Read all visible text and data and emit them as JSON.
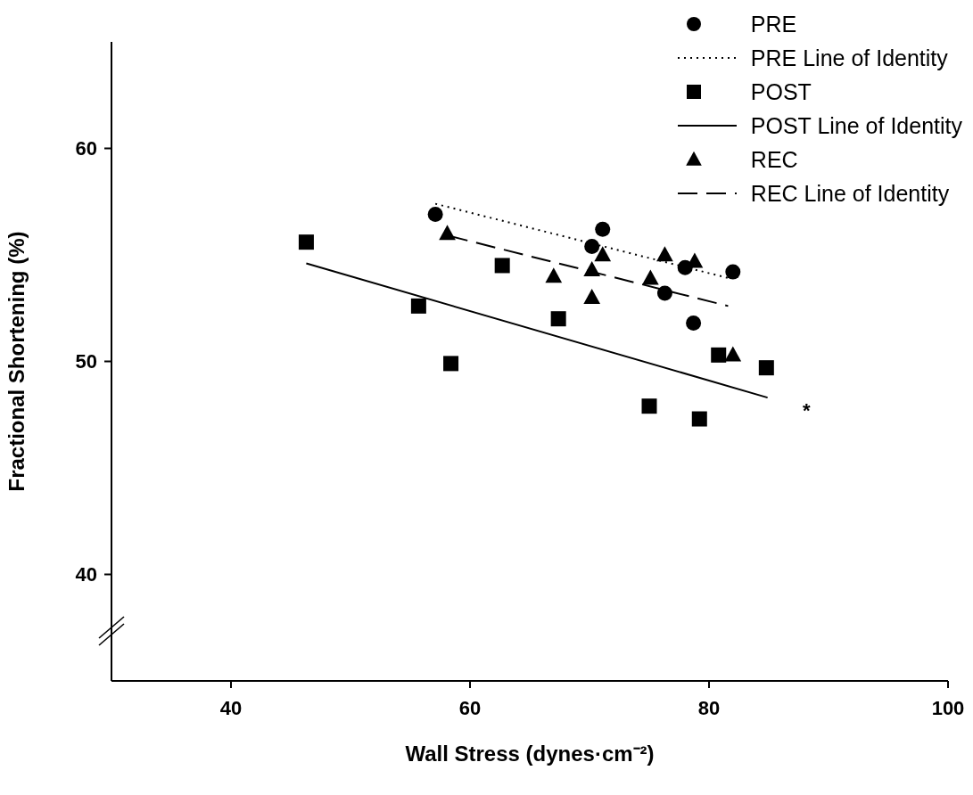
{
  "chart_data": {
    "type": "scatter",
    "xlabel": "Wall Stress (dynes·cm⁻²)",
    "ylabel": "Fractional Shortening (%)",
    "xlim": [
      30,
      100
    ],
    "xticks": [
      40,
      60,
      80,
      100
    ],
    "ylim": [
      35,
      65
    ],
    "yticks": [
      40,
      50,
      60
    ],
    "grid": false,
    "legend": "top right",
    "series": [
      {
        "name": "PRE",
        "marker": "circle",
        "color": "#000000",
        "x": [
          57.1,
          71.1,
          70.2,
          78.0,
          82.0,
          76.3,
          78.7
        ],
        "values": [
          56.9,
          56.2,
          55.4,
          54.4,
          54.2,
          53.2,
          51.8
        ]
      },
      {
        "name": "PRE Line of Identity",
        "type": "line",
        "line_style": "dotted",
        "marker": "none",
        "color": "#000000",
        "x": [
          57.1,
          81.7
        ],
        "values": [
          57.4,
          53.9
        ]
      },
      {
        "name": "POST",
        "marker": "square",
        "color": "#000000",
        "x": [
          46.3,
          62.7,
          55.7,
          67.4,
          58.4,
          80.8,
          84.8,
          75.0,
          79.2
        ],
        "values": [
          55.6,
          54.5,
          52.6,
          52.0,
          49.9,
          50.3,
          49.7,
          47.9,
          47.3
        ]
      },
      {
        "name": "POST Line of Identity",
        "type": "line",
        "line_style": "solid",
        "marker": "none",
        "color": "#000000",
        "x": [
          46.3,
          84.9
        ],
        "values": [
          54.6,
          48.3
        ]
      },
      {
        "name": "REC",
        "marker": "triangle",
        "color": "#000000",
        "x": [
          58.1,
          71.1,
          76.3,
          78.8,
          67.0,
          70.2,
          75.1,
          70.2,
          82.0
        ],
        "values": [
          56.0,
          55.0,
          55.0,
          54.7,
          54.0,
          54.3,
          53.9,
          53.0,
          50.3
        ]
      },
      {
        "name": "REC Line of Identity",
        "type": "line",
        "line_style": "dashed",
        "marker": "none",
        "color": "#000000",
        "x": [
          58.2,
          81.6
        ],
        "values": [
          55.9,
          52.6
        ]
      }
    ],
    "annotations": [
      "*"
    ]
  }
}
